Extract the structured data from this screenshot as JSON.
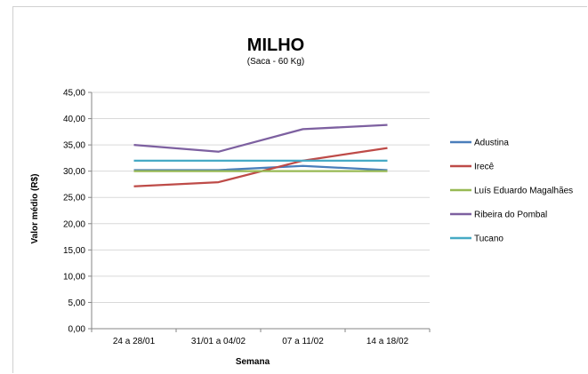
{
  "chart_data": {
    "type": "line",
    "title": "MILHO",
    "subtitle": "(Saca - 60 Kg)",
    "xlabel": "Semana",
    "ylabel": "Valor médio (R$)",
    "categories": [
      "24 a 28/01",
      "31/01 a 04/02",
      "07 a 11/02",
      "14 a 18/02"
    ],
    "ylim": [
      0,
      45
    ],
    "yticks": [
      "0,00",
      "5,00",
      "10,00",
      "15,00",
      "20,00",
      "25,00",
      "30,00",
      "35,00",
      "40,00",
      "45,00"
    ],
    "grid": true,
    "legend_position": "right",
    "series": [
      {
        "name": "Adustina",
        "color": "#4a7ebb",
        "values": [
          30.2,
          30.2,
          31.0,
          30.2
        ]
      },
      {
        "name": "Irecê",
        "color": "#be4b48",
        "values": [
          27.1,
          27.9,
          32.0,
          34.4
        ]
      },
      {
        "name": "Luís Eduardo Magalhães",
        "color": "#98b954",
        "values": [
          30.0,
          30.0,
          30.0,
          30.0
        ]
      },
      {
        "name": "Ribeira do Pombal",
        "color": "#7d60a0",
        "values": [
          35.0,
          33.7,
          38.0,
          38.8
        ]
      },
      {
        "name": "Tucano",
        "color": "#46aac5",
        "values": [
          32.0,
          32.0,
          32.0,
          32.0
        ]
      }
    ]
  }
}
